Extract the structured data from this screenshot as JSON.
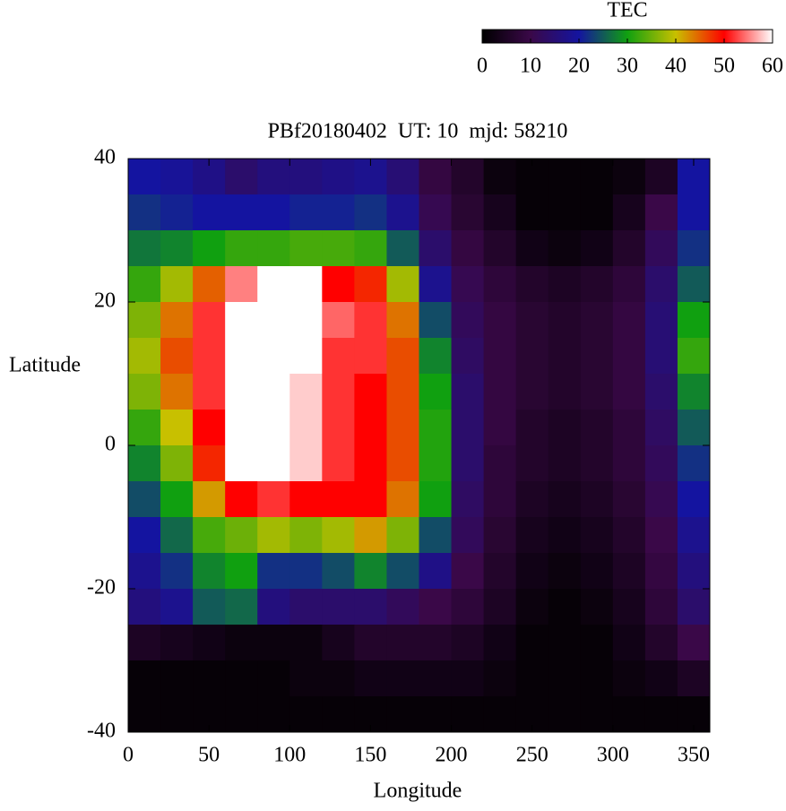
{
  "chart_data": {
    "type": "heatmap",
    "title": "PBf20180402  UT: 10  mjd: 58210",
    "xlabel": "Longitude",
    "ylabel": "Latitude",
    "colorbar_label": "TEC",
    "x": [
      10,
      30,
      50,
      70,
      90,
      110,
      130,
      150,
      170,
      190,
      210,
      230,
      250,
      270,
      290,
      310,
      330,
      350
    ],
    "y": [
      37.5,
      32.5,
      27.5,
      22.5,
      17.5,
      12.5,
      7.5,
      2.5,
      -2.5,
      -7.5,
      -12.5,
      -17.5,
      -22.5,
      -27.5,
      -32.5,
      -37.5
    ],
    "values": [
      [
        20,
        19,
        17,
        14,
        16,
        16,
        17,
        18,
        15,
        9,
        6,
        2,
        1,
        1,
        1,
        2,
        5,
        20
      ],
      [
        22,
        21,
        20,
        20,
        20,
        21,
        21,
        22,
        18,
        11,
        7,
        4,
        1,
        1,
        1,
        4,
        10,
        20
      ],
      [
        27,
        28,
        30,
        32,
        32,
        33,
        33,
        32,
        25,
        14,
        9,
        6,
        3,
        2,
        3,
        6,
        12,
        22
      ],
      [
        32,
        38,
        45,
        55,
        60,
        60,
        50,
        48,
        38,
        18,
        11,
        8,
        6,
        5,
        6,
        8,
        14,
        25
      ],
      [
        36,
        44,
        52,
        60,
        60,
        60,
        54,
        52,
        44,
        24,
        12,
        9,
        7,
        6,
        7,
        9,
        15,
        30
      ],
      [
        38,
        46,
        52,
        60,
        60,
        60,
        52,
        52,
        46,
        28,
        13,
        9,
        7,
        6,
        7,
        9,
        15,
        32
      ],
      [
        36,
        44,
        52,
        60,
        60,
        58,
        52,
        50,
        46,
        30,
        14,
        9,
        7,
        6,
        7,
        9,
        14,
        28
      ],
      [
        32,
        40,
        50,
        60,
        60,
        58,
        52,
        50,
        46,
        31,
        14,
        9,
        6,
        5,
        6,
        8,
        13,
        25
      ],
      [
        28,
        36,
        48,
        60,
        60,
        58,
        52,
        50,
        46,
        31,
        14,
        8,
        6,
        5,
        6,
        8,
        12,
        22
      ],
      [
        24,
        30,
        42,
        50,
        52,
        50,
        50,
        50,
        44,
        30,
        13,
        8,
        5,
        4,
        5,
        7,
        11,
        20
      ],
      [
        20,
        26,
        33,
        35,
        38,
        36,
        38,
        42,
        36,
        24,
        12,
        7,
        4,
        3,
        4,
        6,
        10,
        18
      ],
      [
        18,
        22,
        28,
        30,
        22,
        22,
        24,
        28,
        24,
        17,
        10,
        6,
        3,
        2,
        3,
        5,
        9,
        16
      ],
      [
        16,
        18,
        25,
        26,
        16,
        14,
        14,
        14,
        12,
        10,
        8,
        5,
        2,
        1,
        2,
        4,
        8,
        14
      ],
      [
        5,
        4,
        3,
        2,
        2,
        2,
        4,
        6,
        6,
        6,
        5,
        3,
        1,
        1,
        1,
        3,
        6,
        10
      ],
      [
        1,
        1,
        1,
        1,
        1,
        2,
        2,
        3,
        3,
        3,
        3,
        2,
        1,
        1,
        1,
        2,
        3,
        5
      ],
      [
        1,
        1,
        1,
        1,
        1,
        1,
        1,
        1,
        1,
        1,
        1,
        1,
        1,
        1,
        1,
        1,
        1,
        1
      ]
    ],
    "xlim": [
      0,
      360
    ],
    "ylim": [
      -40,
      40
    ],
    "xticks": [
      0,
      50,
      100,
      150,
      200,
      250,
      300,
      350
    ],
    "yticks": [
      -40,
      -20,
      0,
      20,
      40
    ],
    "clim": [
      0,
      60
    ],
    "cticks": [
      0,
      10,
      20,
      30,
      40,
      50,
      60
    ],
    "colorscale": [
      "#000000",
      "#3a0848",
      "#1414a0",
      "#10a010",
      "#c8c000",
      "#ff0000",
      "#ffffff"
    ]
  }
}
